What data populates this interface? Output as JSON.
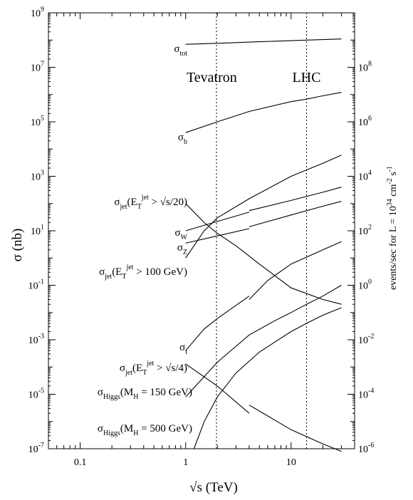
{
  "chart_data": {
    "type": "line",
    "xlabel": "√s   (TeV)",
    "ylabel": "σ  (nb)",
    "ylabel_right": "events/sec for  L = 10",
    "ylabel_right_sup": "34",
    "ylabel_right_unit": "cm",
    "ylabel_right_unit_sup": "-2",
    "ylabel_right_unit2": "s",
    "ylabel_right_unit2_sup": "-1",
    "x_scale": "log",
    "y_scale": "log",
    "xlim": [
      0.05,
      40
    ],
    "ylim": [
      1e-07,
      1000000000.0
    ],
    "right_axis": {
      "ylim": [
        1e-06,
        10000000000.0
      ]
    },
    "x_ticks": [
      {
        "value": 0.1,
        "label": "0.1"
      },
      {
        "value": 1,
        "label": "1"
      },
      {
        "value": 10,
        "label": "10"
      }
    ],
    "y_ticks": [
      {
        "value": 1000000000.0,
        "base": "10",
        "exp": "9"
      },
      {
        "value": 10000000.0,
        "base": "10",
        "exp": "7"
      },
      {
        "value": 100000.0,
        "base": "10",
        "exp": "5"
      },
      {
        "value": 1000.0,
        "base": "10",
        "exp": "3"
      },
      {
        "value": 10.0,
        "base": "10",
        "exp": "1"
      },
      {
        "value": 0.1,
        "base": "10",
        "exp": "-1"
      },
      {
        "value": 0.001,
        "base": "10",
        "exp": "-3"
      },
      {
        "value": 1e-05,
        "base": "10",
        "exp": "-5"
      },
      {
        "value": 1e-07,
        "base": "10",
        "exp": "-7"
      }
    ],
    "y_ticks_right": [
      {
        "value": 100000000.0,
        "base": "10",
        "exp": "8"
      },
      {
        "value": 1000000.0,
        "base": "10",
        "exp": "6"
      },
      {
        "value": 10000.0,
        "base": "10",
        "exp": "4"
      },
      {
        "value": 100.0,
        "base": "10",
        "exp": "2"
      },
      {
        "value": 1.0,
        "base": "10",
        "exp": "0"
      },
      {
        "value": 0.01,
        "base": "10",
        "exp": "-2"
      },
      {
        "value": 0.0001,
        "base": "10",
        "exp": "-4"
      },
      {
        "value": 1e-06,
        "base": "10",
        "exp": "-6"
      }
    ],
    "reference_lines": [
      {
        "name": "Tevatron",
        "x": 1.96
      },
      {
        "name": "LHC",
        "x": 14
      }
    ],
    "series": [
      {
        "label_main": "σ",
        "label_sub": "tot",
        "segments": [
          [
            [
              1.0,
              70000000.0
            ],
            [
              2.0,
              76000000.0
            ],
            [
              5.0,
              87000000.0
            ],
            [
              10,
              95000000.0
            ],
            [
              14,
              100000000.0
            ],
            [
              30,
              110000000.0
            ]
          ]
        ]
      },
      {
        "label_main": "σ",
        "label_sub": "b",
        "segments": [
          [
            [
              1.0,
              40000.0
            ],
            [
              2.0,
              100000.0
            ],
            [
              4.0,
              240000.0
            ],
            [
              7.0,
              400000.0
            ],
            [
              10,
              550000.0
            ],
            [
              14,
              680000.0
            ],
            [
              20,
              900000.0
            ],
            [
              30,
              1200000.0
            ]
          ]
        ]
      },
      {
        "label_main": "σ",
        "label_sub": "jet",
        "label_paren": "(E",
        "label_psub": "T",
        "label_psup": "jet",
        "label_tail": " > √s/20)",
        "segments": [
          [
            [
              1.0,
              100.0
            ],
            [
              1.5,
              20.0
            ],
            [
              2.0,
              8.0
            ],
            [
              3.0,
              2.8
            ],
            [
              5.0,
              0.6
            ],
            [
              10,
              0.08
            ],
            [
              20,
              0.03
            ],
            [
              30,
              0.02
            ]
          ]
        ]
      },
      {
        "label_main": "σ",
        "label_sub": "W",
        "segments": [
          [
            [
              1.0,
              10.0
            ],
            [
              2.0,
              22.0
            ],
            [
              4.0,
              48.0
            ]
          ],
          [
            [
              4.0,
              55.0
            ],
            [
              10,
              130.0
            ],
            [
              20,
              260.0
            ],
            [
              30,
              400.0
            ]
          ]
        ]
      },
      {
        "label_main": "σ",
        "label_sub": "Z",
        "segments": [
          [
            [
              1.0,
              3.5
            ],
            [
              2.0,
              6.5
            ],
            [
              4.0,
              12.0
            ]
          ],
          [
            [
              4.0,
              14.0
            ],
            [
              10,
              38.0
            ],
            [
              20,
              80.0
            ],
            [
              30,
              120.0
            ]
          ]
        ]
      },
      {
        "label_main": "σ",
        "label_sub": "jet",
        "label_paren": "(E",
        "label_psub": "T",
        "label_psup": "jet",
        "label_tail": " > 100 GeV)",
        "segments": [
          [
            [
              1.0,
              1.0
            ],
            [
              1.5,
              10.0
            ],
            [
              2.0,
              30.0
            ],
            [
              4.0,
              150.0
            ],
            [
              10,
              1000.0
            ],
            [
              20,
              3000.0
            ],
            [
              30,
              6000.0
            ]
          ]
        ]
      },
      {
        "label_main": "σ",
        "label_sub": "t",
        "segments": [
          [
            [
              1.0,
              0.0004
            ],
            [
              1.5,
              0.0025
            ],
            [
              2.0,
              0.006
            ],
            [
              4.0,
              0.04
            ]
          ],
          [
            [
              4.0,
              0.03
            ],
            [
              6.0,
              0.15
            ],
            [
              10,
              0.6
            ],
            [
              20,
              2.0
            ],
            [
              30,
              4.0
            ]
          ]
        ]
      },
      {
        "label_main": "σ",
        "label_sub": "jet",
        "label_paren": "(E",
        "label_psub": "T",
        "label_psup": "jet",
        "label_tail": " > √s/4)",
        "segments": [
          [
            [
              1.0,
              0.00013
            ],
            [
              2.0,
              2e-05
            ],
            [
              4.0,
              2e-06
            ]
          ],
          [
            [
              4.0,
              4e-06
            ],
            [
              10,
              5e-07
            ],
            [
              20,
              1.5e-07
            ],
            [
              30,
              8e-08
            ]
          ]
        ]
      },
      {
        "label_main": "σ",
        "label_sub": "Higgs",
        "label_paren": "(M",
        "label_psub": "H",
        "label_tail": " = 150 GeV)",
        "segments": [
          [
            [
              1.0,
              8e-06
            ],
            [
              2.0,
              0.00015
            ],
            [
              4.0,
              0.0015
            ],
            [
              7.0,
              0.005
            ],
            [
              10,
              0.01
            ],
            [
              14,
              0.02
            ],
            [
              20,
              0.04
            ],
            [
              30,
              0.1
            ]
          ]
        ]
      },
      {
        "label_main": "σ",
        "label_sub": "Higgs",
        "label_paren": "(M",
        "label_psub": "H",
        "label_tail": " = 500 GeV)",
        "segments": [
          [
            [
              1.2,
              1e-07
            ],
            [
              1.5,
              1e-06
            ],
            [
              2.0,
              8e-06
            ],
            [
              3.0,
              6e-05
            ],
            [
              5.0,
              0.00035
            ],
            [
              10,
              0.002
            ],
            [
              14,
              0.004
            ],
            [
              20,
              0.008
            ],
            [
              30,
              0.015
            ]
          ]
        ]
      }
    ]
  }
}
